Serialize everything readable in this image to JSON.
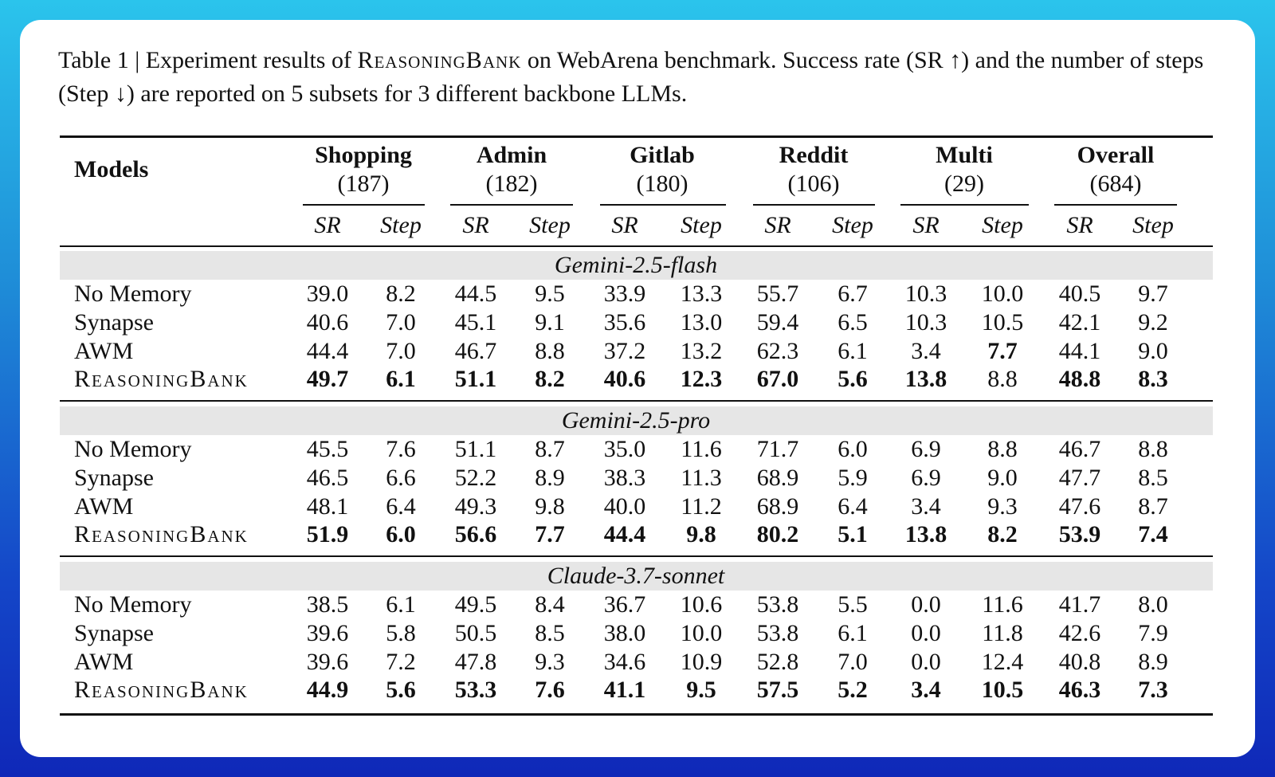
{
  "caption": {
    "prefix": "Table 1 | Experiment results of ",
    "method": "ReasoningBank",
    "suffix": " on WebArena benchmark. Success rate (SR ↑) and the number of steps (Step ↓) are reported on 5 subsets for 3 different backbone LLMs."
  },
  "table": {
    "models_header": "Models",
    "groups": [
      {
        "name": "Shopping",
        "count": "(187)"
      },
      {
        "name": "Admin",
        "count": "(182)"
      },
      {
        "name": "Gitlab",
        "count": "(180)"
      },
      {
        "name": "Reddit",
        "count": "(106)"
      },
      {
        "name": "Multi",
        "count": "(29)"
      },
      {
        "name": "Overall",
        "count": "(684)"
      }
    ],
    "subheaders": [
      "SR",
      "Step"
    ],
    "sections": [
      {
        "title": "Gemini-2.5-flash",
        "rows": [
          {
            "model": "No Memory",
            "values": [
              "39.0",
              "8.2",
              "44.5",
              "9.5",
              "33.9",
              "13.3",
              "55.7",
              "6.7",
              "10.3",
              "10.0",
              "40.5",
              "9.7"
            ],
            "bold": [
              false,
              false,
              false,
              false,
              false,
              false,
              false,
              false,
              false,
              false,
              false,
              false
            ]
          },
          {
            "model": "Synapse",
            "values": [
              "40.6",
              "7.0",
              "45.1",
              "9.1",
              "35.6",
              "13.0",
              "59.4",
              "6.5",
              "10.3",
              "10.5",
              "42.1",
              "9.2"
            ],
            "bold": [
              false,
              false,
              false,
              false,
              false,
              false,
              false,
              false,
              false,
              false,
              false,
              false
            ]
          },
          {
            "model": "AWM",
            "values": [
              "44.4",
              "7.0",
              "46.7",
              "8.8",
              "37.2",
              "13.2",
              "62.3",
              "6.1",
              "3.4",
              "7.7",
              "44.1",
              "9.0"
            ],
            "bold": [
              false,
              false,
              false,
              false,
              false,
              false,
              false,
              false,
              false,
              true,
              false,
              false
            ]
          },
          {
            "model": "ReasoningBank",
            "values": [
              "49.7",
              "6.1",
              "51.1",
              "8.2",
              "40.6",
              "12.3",
              "67.0",
              "5.6",
              "13.8",
              "8.8",
              "48.8",
              "8.3"
            ],
            "bold": [
              true,
              true,
              true,
              true,
              true,
              true,
              true,
              true,
              true,
              false,
              true,
              true
            ],
            "smallcaps": true
          }
        ]
      },
      {
        "title": "Gemini-2.5-pro",
        "rows": [
          {
            "model": "No Memory",
            "values": [
              "45.5",
              "7.6",
              "51.1",
              "8.7",
              "35.0",
              "11.6",
              "71.7",
              "6.0",
              "6.9",
              "8.8",
              "46.7",
              "8.8"
            ],
            "bold": [
              false,
              false,
              false,
              false,
              false,
              false,
              false,
              false,
              false,
              false,
              false,
              false
            ]
          },
          {
            "model": "Synapse",
            "values": [
              "46.5",
              "6.6",
              "52.2",
              "8.9",
              "38.3",
              "11.3",
              "68.9",
              "5.9",
              "6.9",
              "9.0",
              "47.7",
              "8.5"
            ],
            "bold": [
              false,
              false,
              false,
              false,
              false,
              false,
              false,
              false,
              false,
              false,
              false,
              false
            ]
          },
          {
            "model": "AWM",
            "values": [
              "48.1",
              "6.4",
              "49.3",
              "9.8",
              "40.0",
              "11.2",
              "68.9",
              "6.4",
              "3.4",
              "9.3",
              "47.6",
              "8.7"
            ],
            "bold": [
              false,
              false,
              false,
              false,
              false,
              false,
              false,
              false,
              false,
              false,
              false,
              false
            ]
          },
          {
            "model": "ReasoningBank",
            "values": [
              "51.9",
              "6.0",
              "56.6",
              "7.7",
              "44.4",
              "9.8",
              "80.2",
              "5.1",
              "13.8",
              "8.2",
              "53.9",
              "7.4"
            ],
            "bold": [
              true,
              true,
              true,
              true,
              true,
              true,
              true,
              true,
              true,
              true,
              true,
              true
            ],
            "smallcaps": true
          }
        ]
      },
      {
        "title": "Claude-3.7-sonnet",
        "rows": [
          {
            "model": "No Memory",
            "values": [
              "38.5",
              "6.1",
              "49.5",
              "8.4",
              "36.7",
              "10.6",
              "53.8",
              "5.5",
              "0.0",
              "11.6",
              "41.7",
              "8.0"
            ],
            "bold": [
              false,
              false,
              false,
              false,
              false,
              false,
              false,
              false,
              false,
              false,
              false,
              false
            ]
          },
          {
            "model": "Synapse",
            "values": [
              "39.6",
              "5.8",
              "50.5",
              "8.5",
              "38.0",
              "10.0",
              "53.8",
              "6.1",
              "0.0",
              "11.8",
              "42.6",
              "7.9"
            ],
            "bold": [
              false,
              false,
              false,
              false,
              false,
              false,
              false,
              false,
              false,
              false,
              false,
              false
            ]
          },
          {
            "model": "AWM",
            "values": [
              "39.6",
              "7.2",
              "47.8",
              "9.3",
              "34.6",
              "10.9",
              "52.8",
              "7.0",
              "0.0",
              "12.4",
              "40.8",
              "8.9"
            ],
            "bold": [
              false,
              false,
              false,
              false,
              false,
              false,
              false,
              false,
              false,
              false,
              false,
              false
            ]
          },
          {
            "model": "ReasoningBank",
            "values": [
              "44.9",
              "5.6",
              "53.3",
              "7.6",
              "41.1",
              "9.5",
              "57.5",
              "5.2",
              "3.4",
              "10.5",
              "46.3",
              "7.3"
            ],
            "bold": [
              true,
              true,
              true,
              true,
              true,
              true,
              true,
              true,
              true,
              true,
              true,
              true
            ],
            "smallcaps": true
          }
        ]
      }
    ]
  },
  "colors": {
    "background_top": "#2bc4ec",
    "background_bottom": "#0f28b8",
    "card": "#ffffff",
    "band": "#e6e6e6",
    "text": "#111111"
  }
}
